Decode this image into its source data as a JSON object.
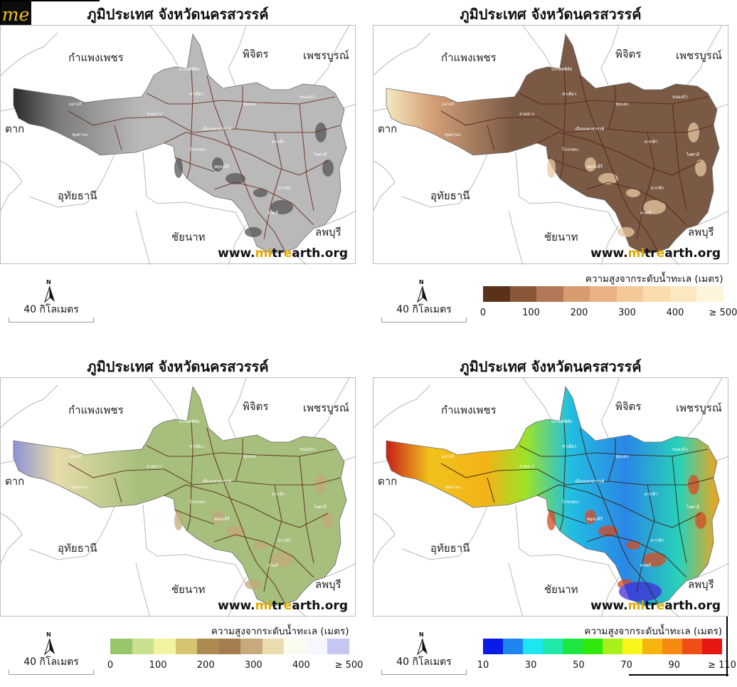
{
  "logo": {
    "text": "me"
  },
  "panels": [
    {
      "title": "ภูมิประเทศ จังหวัดนครสวรรค์",
      "neighbors": {
        "kamphaeng": "กำแพงเพชร",
        "phichit": "พิจิตร",
        "phetchabun": "เพชรบูรณ์",
        "tak": "ตาก",
        "uthai": "อุทัยธานี",
        "chainat": "ชัยนาท",
        "lopburi": "ลพบุรี"
      },
      "url": {
        "prefix": "www.",
        "highlight": "mi",
        "mid": "tr",
        "highlight2": "e",
        "suffix": "arth.org"
      },
      "north": "N",
      "scale": "40 กิโลเมตร",
      "style": "hillshade"
    },
    {
      "title": "ภูมิประเทศ จังหวัดนครสวรรค์",
      "neighbors": {
        "kamphaeng": "กำแพงเพชร",
        "phichit": "พิจิตร",
        "phetchabun": "เพชรบูรณ์",
        "tak": "ตาก",
        "uthai": "อุทัยธานี",
        "chainat": "ชัยนาท",
        "lopburi": "ลพบุรี"
      },
      "url": {
        "prefix": "www.",
        "highlight": "mi",
        "mid": "tr",
        "highlight2": "e",
        "suffix": "arth.org"
      },
      "north": "N",
      "scale": "40 กิโลเมตร",
      "style": "brown",
      "legend": {
        "title": "ความสูงจากระดับน้ำทะเล (เมตร)",
        "colors": [
          "#5a3219",
          "#8a5638",
          "#b27858",
          "#d89b6f",
          "#eab184",
          "#f4c99a",
          "#f9dbad",
          "#fbe8c0",
          "#fdf5d9"
        ],
        "ticks": [
          "0",
          "100",
          "200",
          "300",
          "400",
          "≥ 500"
        ]
      }
    },
    {
      "title": "ภูมิประเทศ จังหวัดนครสวรรค์",
      "neighbors": {
        "kamphaeng": "กำแพงเพชร",
        "phichit": "พิจิตร",
        "phetchabun": "เพชรบูรณ์",
        "tak": "ตาก",
        "uthai": "อุทัยธานี",
        "chainat": "ชัยนาท",
        "lopburi": "ลพบุรี"
      },
      "url": {
        "prefix": "www.",
        "highlight": "mi",
        "mid": "tr",
        "highlight2": "e",
        "suffix": "arth.org"
      },
      "north": "N",
      "scale": "40 กิโลเมตร",
      "style": "green",
      "legend": {
        "title": "ความสูงจากระดับน้ำทะเล (เมตร)",
        "colors": [
          "#98c66a",
          "#c9e08e",
          "#f4f3a0",
          "#d6c471",
          "#ad8a4f",
          "#a57c4f",
          "#c6aa7d",
          "#e9ddb0",
          "#fbfbf0",
          "#f6f6ff",
          "#c6c6f2"
        ],
        "ticks": [
          "0",
          "100",
          "200",
          "300",
          "400",
          "≥ 500"
        ]
      }
    },
    {
      "title": "ภูมิประเทศ จังหวัดนครสวรรค์",
      "neighbors": {
        "kamphaeng": "กำแพงเพชร",
        "phichit": "พิจิตร",
        "phetchabun": "เพชรบูรณ์",
        "tak": "ตาก",
        "uthai": "อุทัยธานี",
        "chainat": "ชัยนาท",
        "lopburi": "ลพบุรี"
      },
      "url": {
        "prefix": "www.",
        "highlight": "mi",
        "mid": "tr",
        "highlight2": "e",
        "suffix": "arth.org"
      },
      "north": "N",
      "scale": "40 กิโลเมตร",
      "style": "spectral",
      "legend": {
        "title": "ความสูงจากระดับน้ำทะเล (เมตร)",
        "colors": [
          "#0a1be6",
          "#1d86f0",
          "#1ce6f0",
          "#1fe8a8",
          "#1ee640",
          "#2fe80c",
          "#a7f01a",
          "#f8f51a",
          "#f6b40d",
          "#f68a10",
          "#ef4e17",
          "#e81612"
        ],
        "ticks": [
          "10",
          "30",
          "50",
          "70",
          "90",
          "≥ 110"
        ]
      }
    }
  ]
}
